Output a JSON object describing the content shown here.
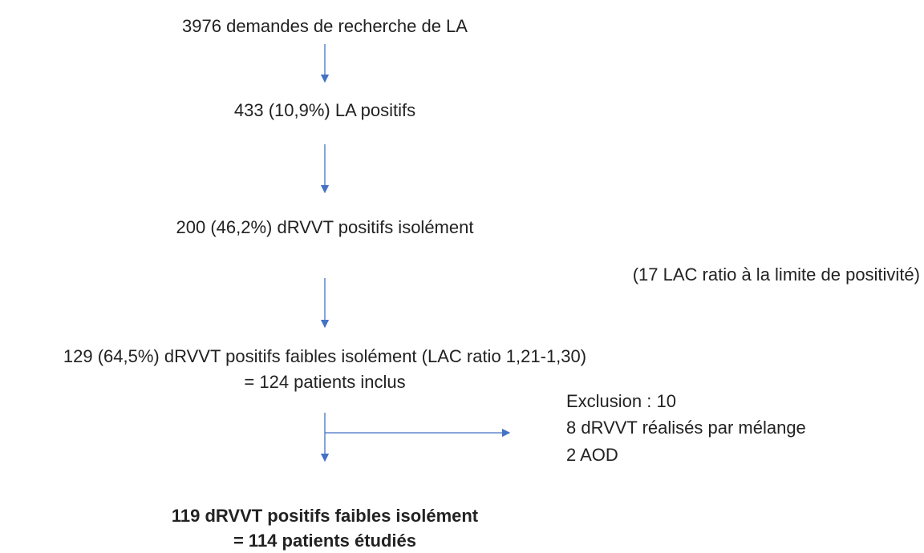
{
  "nodes": [
    {
      "label": "3976 demandes de recherche de LA"
    },
    {
      "label": "433 (10,9%) LA positifs"
    },
    {
      "label": "200 (46,2%) dRVVT positifs isolément"
    },
    {
      "label": "129 (64,5%) dRVVT positifs faibles isolément (LAC ratio 1,21-1,30)",
      "sublabel": "= 124 patients inclus"
    },
    {
      "label": "119 dRVVT positifs faibles isolément",
      "sublabel": "= 114 patients étudiés"
    }
  ],
  "note": "(17 LAC ratio à la limite de positivité)",
  "exclusion": [
    "Exclusion : 10",
    "8 dRVVT réalisés par mélange",
    "2 AOD"
  ]
}
